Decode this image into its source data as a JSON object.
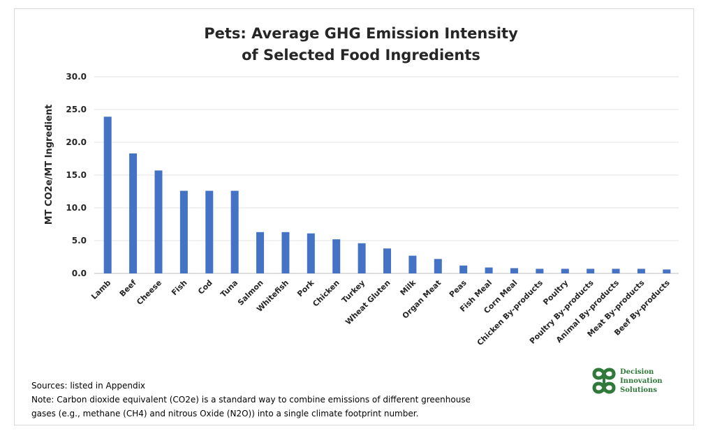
{
  "chart_data": {
    "type": "bar",
    "title_line1": "Pets: Average GHG Emission Intensity",
    "title_line2": "of Selected Food Ingredients",
    "ylabel": "MT CO2e/MT Ingredient",
    "xlabel": "",
    "ylim": [
      0,
      30
    ],
    "yticks": [
      "0.0",
      "5.0",
      "10.0",
      "15.0",
      "20.0",
      "25.0",
      "30.0"
    ],
    "grid": true,
    "bar_color": "#4472c4",
    "categories": [
      "Lamb",
      "Beef",
      "Cheese",
      "Fish",
      "Cod",
      "Tuna",
      "Salmon",
      "Whitefish",
      "Pork",
      "Chicken",
      "Turkey",
      "Wheat Gluten",
      "Milk",
      "Organ Meat",
      "Peas",
      "Fish Meal",
      "Corn Meal",
      "Chicken By-products",
      "Poultry",
      "Poultry By-products",
      "Animal By-products",
      "Meat By-products",
      "Beef By-products"
    ],
    "values": [
      23.9,
      18.3,
      15.7,
      12.6,
      12.6,
      12.6,
      6.3,
      6.3,
      6.1,
      5.2,
      4.6,
      3.8,
      2.7,
      2.2,
      1.2,
      0.9,
      0.8,
      0.7,
      0.7,
      0.7,
      0.7,
      0.7,
      0.6
    ]
  },
  "notes": {
    "sources": "Sources: listed in Appendix",
    "note_line1": "Note: Carbon dioxide equivalent (CO2e)  is a standard way to combine emissions of different greenhouse",
    "note_line2": "gases (e.g., methane (CH4) and nitrous Oxide (N2O)) into a single climate footprint number."
  },
  "logo": {
    "line1": "Decision",
    "line2": "Innovation",
    "line3": "Solutions",
    "color": "#2f7a3a"
  }
}
